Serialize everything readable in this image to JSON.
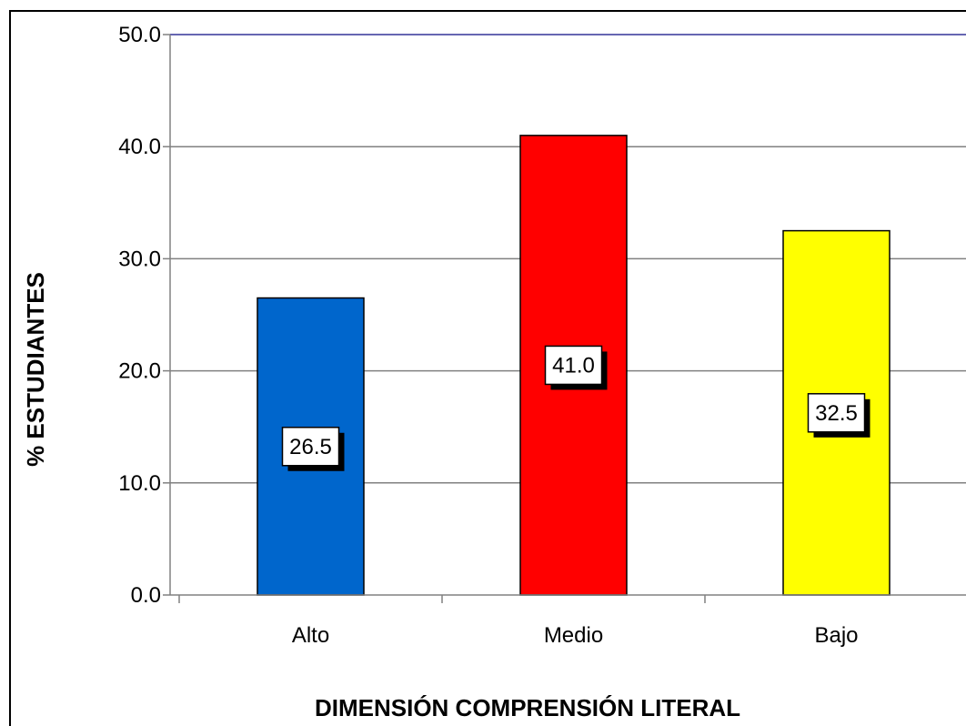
{
  "chart_data": {
    "type": "bar",
    "categories": [
      "Alto",
      "Medio",
      "Bajo"
    ],
    "values": [
      26.5,
      41.0,
      32.5
    ],
    "data_labels": [
      "26.5",
      "41.0",
      "32.5"
    ],
    "xlabel": "DIMENSIÓN COMPRENSIÓN LITERAL",
    "ylabel": "% ESTUDIANTES",
    "ylim": [
      0,
      50
    ],
    "yticks": [
      "0.0",
      "10.0",
      "20.0",
      "30.0",
      "40.0",
      "50.0"
    ],
    "ytick_values": [
      0,
      10,
      20,
      30,
      40,
      50
    ],
    "grid": true,
    "legend": "none",
    "colors": [
      "#0066cc",
      "#ff0000",
      "#ffff00"
    ],
    "gridline_color": "#808080",
    "top_gridline_color": "#333399"
  }
}
